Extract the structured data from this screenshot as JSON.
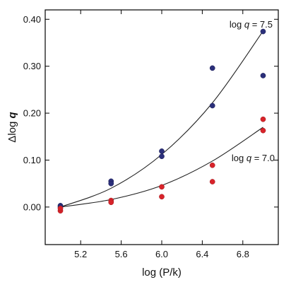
{
  "chart_data": {
    "type": "scatter",
    "title": "",
    "xlabel": "log (P/k)",
    "ylabel_main": "Δlog ",
    "ylabel_var": "q",
    "xlim": [
      4.85,
      7.15
    ],
    "ylim": [
      -0.08,
      0.42
    ],
    "x_ticks": [
      5.2,
      5.6,
      6.0,
      6.4,
      6.8
    ],
    "x_tick_labels": [
      "5.2",
      "5.6",
      "6.0",
      "6.4",
      "6.8"
    ],
    "y_ticks": [
      0.0,
      0.1,
      0.2,
      0.3,
      0.4
    ],
    "y_tick_labels": [
      "0.00",
      "0.10",
      "0.20",
      "0.30",
      "0.40"
    ],
    "grid": false,
    "legend": "none",
    "series": [
      {
        "label_prefix": "log ",
        "label_var": "q",
        "label_suffix": " = 7.5",
        "color": "#2b2f7a",
        "points": [
          [
            5.0,
            0.003
          ],
          [
            5.0,
            0.0
          ],
          [
            5.5,
            0.055
          ],
          [
            5.5,
            0.05
          ],
          [
            6.0,
            0.119
          ],
          [
            6.0,
            0.108
          ],
          [
            6.5,
            0.296
          ],
          [
            6.5,
            0.216
          ],
          [
            7.0,
            0.374
          ],
          [
            7.0,
            0.28
          ]
        ],
        "fit_x": [
          5.0,
          5.5,
          6.0,
          6.5,
          7.0
        ],
        "fit_y": [
          0.0,
          0.04,
          0.112,
          0.222,
          0.375
        ]
      },
      {
        "label_prefix": "log ",
        "label_var": "q",
        "label_suffix": " = 7.0",
        "color": "#d8232a",
        "points": [
          [
            5.0,
            -0.008
          ],
          [
            5.0,
            -0.003
          ],
          [
            5.5,
            0.014
          ],
          [
            5.5,
            0.01
          ],
          [
            6.0,
            0.043
          ],
          [
            6.0,
            0.022
          ],
          [
            6.5,
            0.089
          ],
          [
            6.5,
            0.054
          ],
          [
            7.0,
            0.187
          ],
          [
            7.0,
            0.163
          ]
        ],
        "fit_x": [
          5.0,
          5.5,
          6.0,
          6.5,
          7.0
        ],
        "fit_y": [
          0.0,
          0.016,
          0.046,
          0.098,
          0.17
        ]
      }
    ]
  }
}
